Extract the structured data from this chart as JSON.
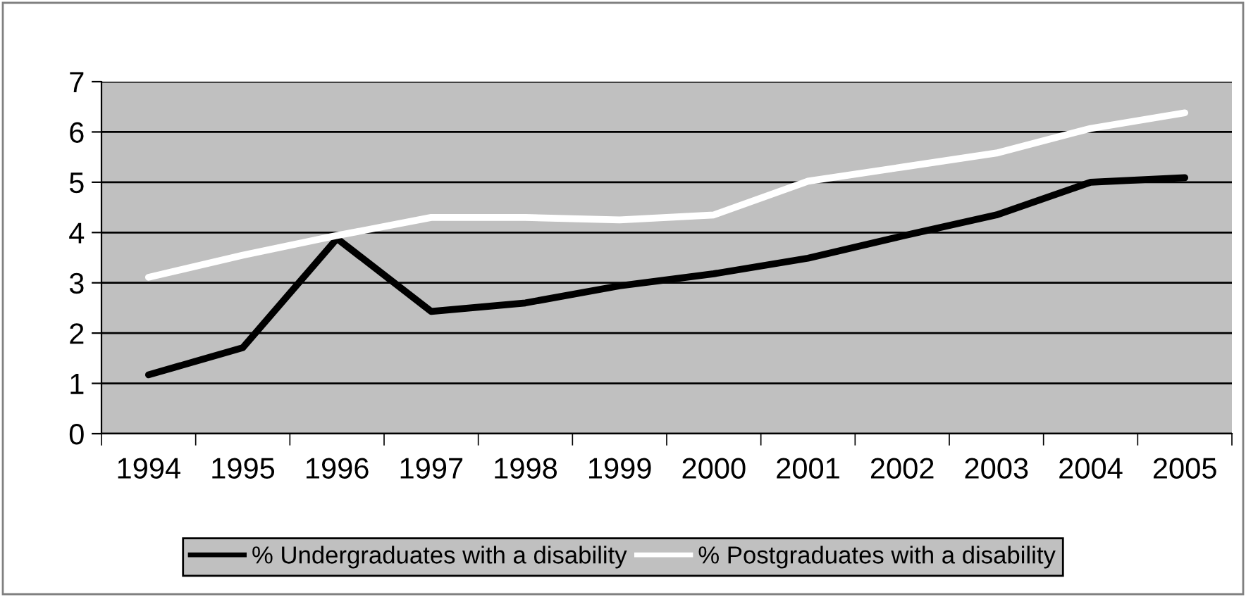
{
  "chart_data": {
    "type": "line",
    "categories": [
      "1994",
      "1995",
      "1996",
      "1997",
      "1998",
      "1999",
      "2000",
      "2001",
      "2002",
      "2003",
      "2004",
      "2005"
    ],
    "series": [
      {
        "name": "% Undergraduates with a disability",
        "color": "#000000",
        "values": [
          1.17,
          1.71,
          3.88,
          2.43,
          2.6,
          2.94,
          3.18,
          3.49,
          3.93,
          4.35,
          5.0,
          5.09
        ]
      },
      {
        "name": "% Postgraduates with a disability",
        "color": "#ffffff",
        "values": [
          3.11,
          3.55,
          3.94,
          4.3,
          4.3,
          4.25,
          4.35,
          5.02,
          5.3,
          5.58,
          6.07,
          6.38
        ]
      }
    ],
    "ylim": [
      0,
      7
    ],
    "yticks": [
      0,
      1,
      2,
      3,
      4,
      5,
      6,
      7
    ],
    "grid": "y",
    "legend": "bottom",
    "marker": "none",
    "line_style": "solid"
  }
}
